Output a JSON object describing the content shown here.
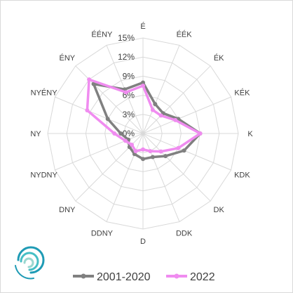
{
  "chart_data": {
    "type": "radar",
    "categories": [
      "É",
      "ÉÉK",
      "ÉK",
      "KÉK",
      "K",
      "KDK",
      "DK",
      "DDK",
      "D",
      "DDNY",
      "DNY",
      "NYDNY",
      "NY",
      "NYÉNY",
      "ÉNY",
      "ÉÉNY"
    ],
    "rticks": [
      "0%",
      "3%",
      "6%",
      "9%",
      "12%",
      "15%"
    ],
    "rlim": [
      0,
      15
    ],
    "grid": true,
    "legend_position": "bottom",
    "series": [
      {
        "name": "2001-2020",
        "color": "#808080",
        "values": [
          8.0,
          5.0,
          4.5,
          6.0,
          9.0,
          7.0,
          5.0,
          4.0,
          4.0,
          3.5,
          3.0,
          2.5,
          3.5,
          6.0,
          11.0,
          7.5
        ]
      },
      {
        "name": "2022",
        "color": "#f08cf0",
        "values": [
          7.5,
          4.0,
          4.0,
          5.5,
          9.0,
          6.0,
          4.0,
          3.0,
          2.5,
          3.0,
          2.5,
          3.0,
          4.5,
          9.5,
          12.0,
          7.0
        ]
      }
    ]
  },
  "logo": {
    "name": "logo-icon",
    "colors": [
      "#1f9bb5",
      "#46bfc5",
      "#9ad7d0"
    ]
  }
}
